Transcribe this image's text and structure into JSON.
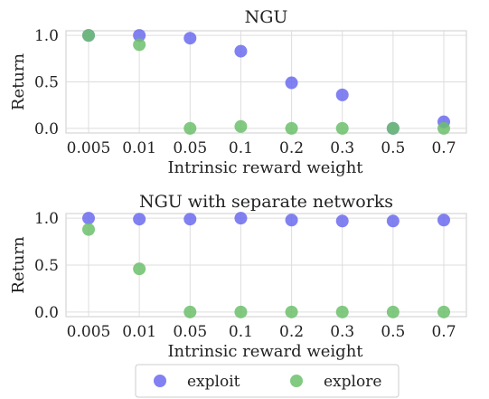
{
  "chart_data": [
    {
      "type": "scatter",
      "title": "NGU",
      "xlabel": "Intrinsic reward weight",
      "ylabel": "Return",
      "categories": [
        "0.005",
        "0.01",
        "0.05",
        "0.1",
        "0.2",
        "0.3",
        "0.5",
        "0.7"
      ],
      "yticks": [
        "0.0",
        "0.5",
        "1.0"
      ],
      "ylim": [
        -0.05,
        1.05
      ],
      "grid": true,
      "series": [
        {
          "name": "exploit",
          "color": "#6b6bf0",
          "values": [
            1.0,
            1.0,
            0.97,
            0.83,
            0.49,
            0.36,
            0.0,
            0.07
          ]
        },
        {
          "name": "explore",
          "color": "#6cbf6c",
          "values": [
            1.0,
            0.9,
            0.0,
            0.02,
            0.0,
            0.0,
            0.0,
            0.0
          ]
        }
      ]
    },
    {
      "type": "scatter",
      "title": "NGU with separate networks",
      "xlabel": "Intrinsic reward weight",
      "ylabel": "Return",
      "categories": [
        "0.005",
        "0.01",
        "0.05",
        "0.1",
        "0.2",
        "0.3",
        "0.5",
        "0.7"
      ],
      "yticks": [
        "0.0",
        "0.5",
        "1.0"
      ],
      "ylim": [
        -0.05,
        1.05
      ],
      "grid": true,
      "series": [
        {
          "name": "exploit",
          "color": "#6b6bf0",
          "values": [
            1.0,
            0.99,
            0.99,
            1.0,
            0.98,
            0.97,
            0.97,
            0.98
          ]
        },
        {
          "name": "explore",
          "color": "#6cbf6c",
          "values": [
            0.88,
            0.46,
            0.0,
            0.0,
            0.0,
            0.0,
            0.0,
            0.0
          ]
        }
      ]
    }
  ],
  "legend": {
    "placement": "bottom-center",
    "items": [
      {
        "label": "exploit",
        "color": "#6b6bf0"
      },
      {
        "label": "explore",
        "color": "#6cbf6c"
      }
    ]
  }
}
